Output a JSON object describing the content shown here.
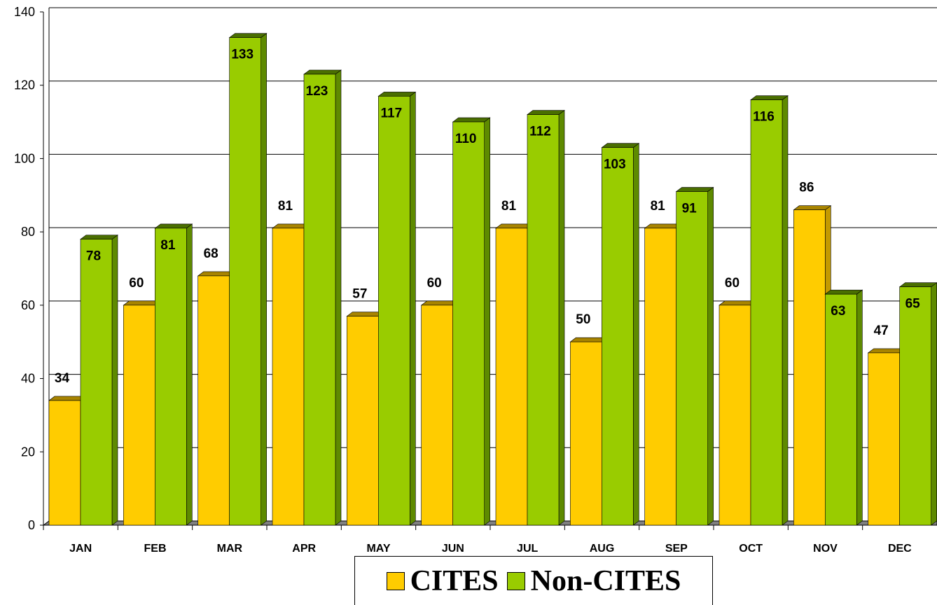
{
  "chart_data": {
    "type": "bar",
    "categories": [
      "JAN",
      "FEB",
      "MAR",
      "APR",
      "MAY",
      "JUN",
      "JUL",
      "AUG",
      "SEP",
      "OCT",
      "NOV",
      "DEC"
    ],
    "series": [
      {
        "name": "CITES",
        "color": "#FFCC00",
        "values": [
          34,
          60,
          68,
          81,
          57,
          60,
          81,
          50,
          81,
          60,
          86,
          47
        ]
      },
      {
        "name": "Non-CITES",
        "color": "#99CC00",
        "values": [
          78,
          81,
          133,
          123,
          117,
          110,
          112,
          103,
          91,
          116,
          63,
          65
        ]
      }
    ],
    "ylim": [
      0,
      140
    ],
    "yticks": [
      0,
      20,
      40,
      60,
      80,
      100,
      120,
      140
    ],
    "grid": true,
    "legend_position": "bottom-center",
    "data_labels": true,
    "style": "3d-column"
  }
}
